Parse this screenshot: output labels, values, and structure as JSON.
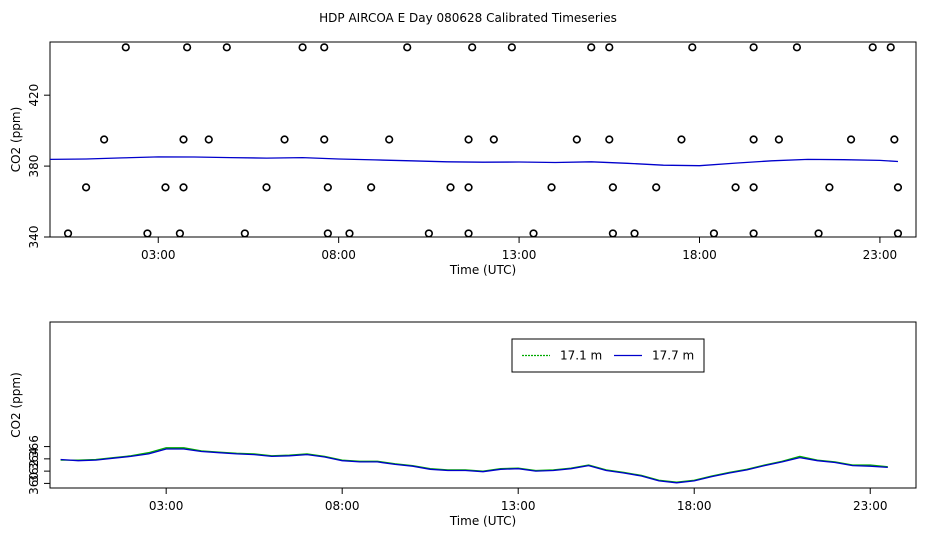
{
  "title": "HDP AIRCOA E  Day 080628  Calibrated Timeseries",
  "chart_data": [
    {
      "type": "scatter",
      "xlabel": "Time (UTC)",
      "ylabel": "CO2 (ppm)",
      "xlim": [
        0.0,
        24.0
      ],
      "ylim": [
        340,
        450
      ],
      "x_ticks": [
        3,
        8,
        13,
        18,
        23
      ],
      "x_tick_labels": [
        "03:00",
        "08:00",
        "13:00",
        "18:00",
        "23:00"
      ],
      "y_ticks": [
        340,
        380,
        420
      ],
      "y_tick_labels": [
        "340",
        "380",
        "420"
      ],
      "grid": false,
      "legend": null,
      "series": [
        {
          "kind": "points",
          "color": "#000000",
          "points": [
            [
              2.1,
              447
            ],
            [
              3.8,
              447
            ],
            [
              4.9,
              447
            ],
            [
              7.0,
              447
            ],
            [
              7.6,
              447
            ],
            [
              9.9,
              447
            ],
            [
              11.7,
              447
            ],
            [
              12.8,
              447
            ],
            [
              15.0,
              447
            ],
            [
              15.5,
              447
            ],
            [
              17.8,
              447
            ],
            [
              19.5,
              447
            ],
            [
              20.7,
              447
            ],
            [
              22.8,
              447
            ],
            [
              23.3,
              447
            ],
            [
              1.5,
              395
            ],
            [
              3.7,
              395
            ],
            [
              4.4,
              395
            ],
            [
              6.5,
              395
            ],
            [
              7.6,
              395
            ],
            [
              9.4,
              395
            ],
            [
              11.6,
              395
            ],
            [
              12.3,
              395
            ],
            [
              14.6,
              395
            ],
            [
              15.5,
              395
            ],
            [
              17.5,
              395
            ],
            [
              19.5,
              395
            ],
            [
              20.2,
              395
            ],
            [
              22.2,
              395
            ],
            [
              23.4,
              395
            ],
            [
              1.0,
              368
            ],
            [
              3.2,
              368
            ],
            [
              3.7,
              368
            ],
            [
              6.0,
              368
            ],
            [
              7.7,
              368
            ],
            [
              8.9,
              368
            ],
            [
              11.1,
              368
            ],
            [
              11.6,
              368
            ],
            [
              13.9,
              368
            ],
            [
              15.6,
              368
            ],
            [
              16.8,
              368
            ],
            [
              19.0,
              368
            ],
            [
              19.5,
              368
            ],
            [
              21.6,
              368
            ],
            [
              23.5,
              368
            ],
            [
              0.5,
              342
            ],
            [
              2.7,
              342
            ],
            [
              3.6,
              342
            ],
            [
              5.4,
              342
            ],
            [
              7.7,
              342
            ],
            [
              8.3,
              342
            ],
            [
              10.5,
              342
            ],
            [
              11.6,
              342
            ],
            [
              13.4,
              342
            ],
            [
              15.6,
              342
            ],
            [
              16.2,
              342
            ],
            [
              18.4,
              342
            ],
            [
              19.5,
              342
            ],
            [
              21.3,
              342
            ],
            [
              23.5,
              342
            ]
          ]
        },
        {
          "kind": "line",
          "color": "#0000cc",
          "x": [
            0,
            1,
            2,
            3,
            4,
            5,
            6,
            7,
            8,
            9,
            10,
            11,
            12,
            13,
            14,
            15,
            16,
            17,
            18,
            19,
            20,
            21,
            22,
            23,
            23.5
          ],
          "y": [
            383.8,
            384.0,
            384.6,
            385.2,
            385.1,
            384.8,
            384.5,
            384.8,
            384.0,
            383.5,
            383.0,
            382.4,
            382.2,
            382.3,
            382.0,
            382.4,
            381.6,
            380.5,
            380.2,
            381.7,
            383.0,
            383.8,
            383.6,
            383.2,
            382.6
          ]
        }
      ]
    },
    {
      "type": "line",
      "xlabel": "Time (UTC)",
      "ylabel": "CO2 (ppm)",
      "xlim": [
        -0.3,
        24.3
      ],
      "ylim": [
        359.25,
        386.3
      ],
      "x_ticks": [
        3,
        8,
        13,
        18,
        23
      ],
      "x_tick_labels": [
        "03:00",
        "08:00",
        "13:00",
        "18:00",
        "23:00"
      ],
      "y_ticks": [
        360,
        362,
        364,
        366
      ],
      "y_tick_labels": [
        "360",
        "362",
        "364",
        "366"
      ],
      "grid": false,
      "legend": "top-center",
      "series": [
        {
          "name": "17.1 m",
          "color": "#00aa00",
          "x": [
            0,
            0.5,
            1,
            1.5,
            2,
            2.5,
            3,
            3.5,
            4,
            4.5,
            5,
            5.5,
            6,
            6.5,
            7,
            7.5,
            8,
            8.5,
            9,
            9.5,
            10,
            10.5,
            11,
            11.5,
            12,
            12.5,
            13,
            13.5,
            14,
            14.5,
            15,
            15.5,
            16,
            16.5,
            17,
            17.5,
            18,
            18.5,
            19,
            19.5,
            20,
            20.5,
            21,
            21.5,
            22,
            22.5,
            23,
            23.5
          ],
          "y": [
            363.8,
            363.8,
            363.9,
            364.2,
            364.5,
            365.0,
            365.8,
            365.8,
            365.3,
            365.1,
            364.9,
            364.8,
            364.5,
            364.6,
            364.8,
            364.4,
            363.8,
            363.6,
            363.6,
            363.2,
            362.9,
            362.4,
            362.2,
            362.2,
            362.0,
            362.4,
            362.5,
            362.1,
            362.2,
            362.5,
            363.0,
            362.2,
            361.8,
            361.3,
            360.5,
            360.2,
            360.5,
            361.2,
            361.8,
            362.3,
            363.0,
            363.6,
            364.4,
            363.8,
            363.5,
            363.0,
            363.0,
            362.7
          ]
        },
        {
          "name": "17.7 m",
          "color": "#0000cc",
          "x": [
            0,
            0.5,
            1,
            1.5,
            2,
            2.5,
            3,
            3.5,
            4,
            4.5,
            5,
            5.5,
            6,
            6.5,
            7,
            7.5,
            8,
            8.5,
            9,
            9.5,
            10,
            10.5,
            11,
            11.5,
            12,
            12.5,
            13,
            13.5,
            14,
            14.5,
            15,
            15.5,
            16,
            16.5,
            17,
            17.5,
            18,
            18.5,
            19,
            19.5,
            20,
            20.5,
            21,
            21.5,
            22,
            22.5,
            23,
            23.5
          ],
          "y": [
            363.9,
            363.7,
            363.8,
            364.1,
            364.4,
            364.8,
            365.6,
            365.6,
            365.2,
            365.0,
            364.8,
            364.7,
            364.4,
            364.5,
            364.7,
            364.3,
            363.7,
            363.5,
            363.5,
            363.1,
            362.8,
            362.3,
            362.1,
            362.1,
            361.9,
            362.3,
            362.4,
            362.0,
            362.1,
            362.4,
            362.9,
            362.1,
            361.7,
            361.2,
            360.4,
            360.1,
            360.4,
            361.1,
            361.7,
            362.2,
            362.9,
            363.5,
            364.2,
            363.7,
            363.4,
            362.9,
            362.8,
            362.6
          ]
        }
      ]
    }
  ]
}
